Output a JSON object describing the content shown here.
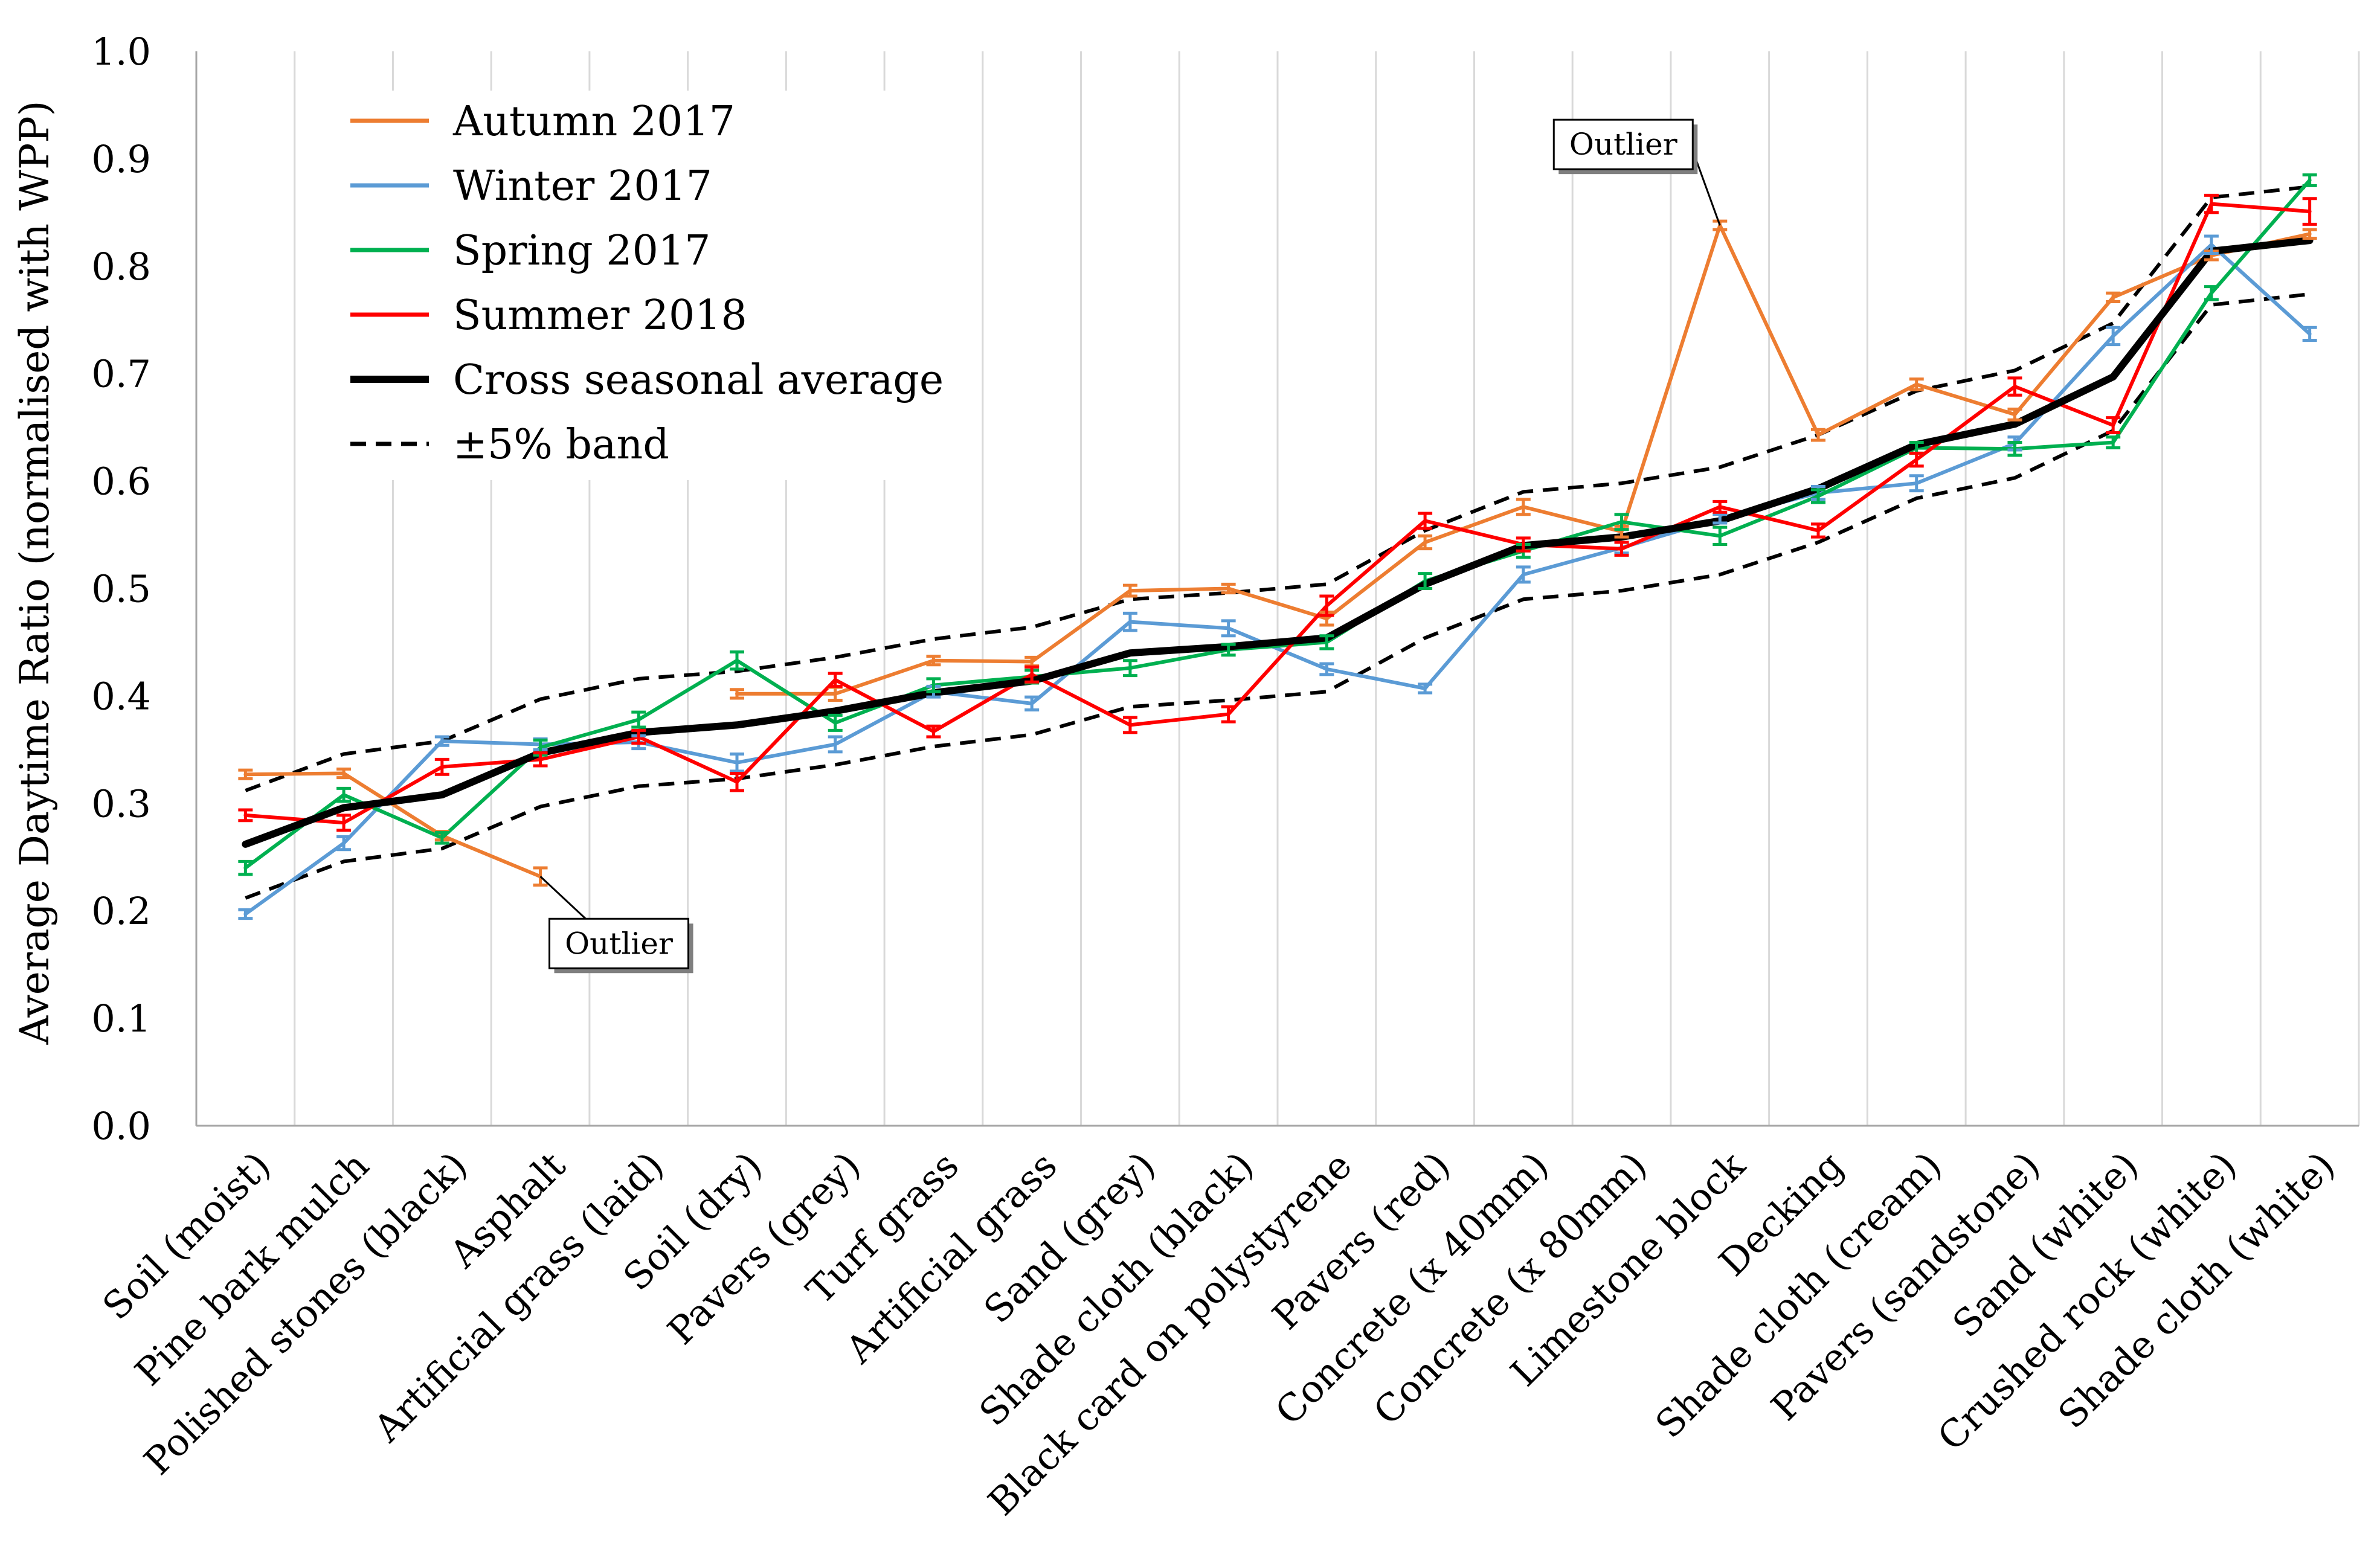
{
  "chart_data": {
    "type": "line",
    "ylabel": "Average Daytime Ratio (normalised with WPP)",
    "xlabel": "",
    "ylim": [
      0.0,
      1.0
    ],
    "ytick_step": 0.1,
    "yticks": [
      "0.0",
      "0.1",
      "0.2",
      "0.3",
      "0.4",
      "0.5",
      "0.6",
      "0.7",
      "0.8",
      "0.9",
      "1.0"
    ],
    "grid": "vertical",
    "legend_position": "top-left",
    "categories": [
      "Soil (moist)",
      "Pine bark mulch",
      "Polished stones (black)",
      "Asphalt",
      "Artificial grass (laid)",
      "Soil (dry)",
      "Pavers (grey)",
      "Turf grass",
      "Artificial grass",
      "Sand (grey)",
      "Shade cloth (black)",
      "Black card on polystyrene",
      "Pavers (red)",
      "Concrete (x 40mm)",
      "Concrete (x 80mm)",
      "Limestone block",
      "Decking",
      "Shade cloth (cream)",
      "Pavers (sandstone)",
      "Sand (white)",
      "Crushed rock (white)",
      "Shade cloth (white)"
    ],
    "series": [
      {
        "name": "Autumn 2017",
        "color": "#ED7D31",
        "style": "solid",
        "values": [
          0.327,
          0.328,
          0.27,
          0.232,
          null,
          0.402,
          0.402,
          0.433,
          0.432,
          0.498,
          0.5,
          0.472,
          0.543,
          0.576,
          0.553,
          0.838,
          0.643,
          0.69,
          0.662,
          0.771,
          0.81,
          0.83
        ],
        "errors": [
          0.004,
          0.004,
          0.004,
          0.008,
          null,
          0.004,
          0.006,
          0.004,
          0.004,
          0.005,
          0.004,
          0.006,
          0.006,
          0.007,
          0.005,
          0.004,
          0.005,
          0.005,
          0.005,
          0.004,
          0.004,
          0.004
        ]
      },
      {
        "name": "Winter 2017",
        "color": "#5B9BD5",
        "style": "solid",
        "values": [
          0.197,
          0.263,
          0.358,
          0.355,
          0.357,
          0.338,
          0.355,
          0.404,
          0.393,
          0.469,
          0.463,
          0.425,
          0.407,
          0.513,
          0.538,
          0.565,
          0.589,
          0.598,
          0.635,
          0.735,
          0.82,
          0.737
        ],
        "errors": [
          0.004,
          0.006,
          0.004,
          0.005,
          0.006,
          0.008,
          0.007,
          0.005,
          0.006,
          0.008,
          0.007,
          0.005,
          0.004,
          0.007,
          0.005,
          0.004,
          0.006,
          0.007,
          0.006,
          0.008,
          0.008,
          0.006
        ]
      },
      {
        "name": "Spring 2017",
        "color": "#00B050",
        "style": "solid",
        "values": [
          0.24,
          0.308,
          0.268,
          0.352,
          0.378,
          0.433,
          0.375,
          0.41,
          0.418,
          0.426,
          0.443,
          0.45,
          0.507,
          0.535,
          0.562,
          0.549,
          0.586,
          0.631,
          0.63,
          0.636,
          0.775,
          0.88
        ],
        "errors": [
          0.006,
          0.006,
          0.005,
          0.007,
          0.007,
          0.008,
          0.007,
          0.006,
          0.006,
          0.007,
          0.005,
          0.006,
          0.007,
          0.006,
          0.007,
          0.008,
          0.006,
          0.005,
          0.006,
          0.005,
          0.006,
          0.005
        ]
      },
      {
        "name": "Summer 2018",
        "color": "#FF0000",
        "style": "solid",
        "values": [
          0.289,
          0.282,
          0.334,
          0.341,
          0.362,
          0.32,
          0.415,
          0.367,
          0.42,
          0.373,
          0.383,
          0.484,
          0.563,
          0.541,
          0.537,
          0.576,
          0.554,
          0.62,
          0.688,
          0.652,
          0.858,
          0.851
        ],
        "errors": [
          0.005,
          0.007,
          0.007,
          0.006,
          0.006,
          0.008,
          0.006,
          0.005,
          0.007,
          0.007,
          0.007,
          0.009,
          0.007,
          0.006,
          0.006,
          0.005,
          0.006,
          0.006,
          0.008,
          0.007,
          0.008,
          0.012
        ]
      },
      {
        "name": "Cross seasonal average",
        "color": "#000000",
        "style": "thick",
        "values": [
          0.262,
          0.296,
          0.308,
          0.347,
          0.366,
          0.373,
          0.386,
          0.403,
          0.414,
          0.44,
          0.446,
          0.454,
          0.504,
          0.54,
          0.548,
          0.563,
          0.593,
          0.634,
          0.653,
          0.697,
          0.814,
          0.824
        ]
      },
      {
        "name": "±5% band",
        "color": "#000000",
        "style": "dashed",
        "upper": [
          0.312,
          0.346,
          0.358,
          0.397,
          0.416,
          0.423,
          0.436,
          0.453,
          0.464,
          0.49,
          0.496,
          0.504,
          0.554,
          0.59,
          0.598,
          0.613,
          0.643,
          0.684,
          0.703,
          0.747,
          0.864,
          0.874
        ],
        "lower": [
          0.212,
          0.246,
          0.258,
          0.297,
          0.316,
          0.323,
          0.336,
          0.353,
          0.364,
          0.39,
          0.396,
          0.404,
          0.454,
          0.49,
          0.498,
          0.513,
          0.543,
          0.584,
          0.603,
          0.647,
          0.764,
          0.774
        ]
      }
    ],
    "annotations": [
      {
        "text": "Outlier",
        "category": "Limestone block",
        "value": 0.838,
        "box_side": "upper-left"
      },
      {
        "text": "Outlier",
        "category": "Asphalt",
        "value": 0.232,
        "box_side": "lower-right"
      }
    ]
  }
}
